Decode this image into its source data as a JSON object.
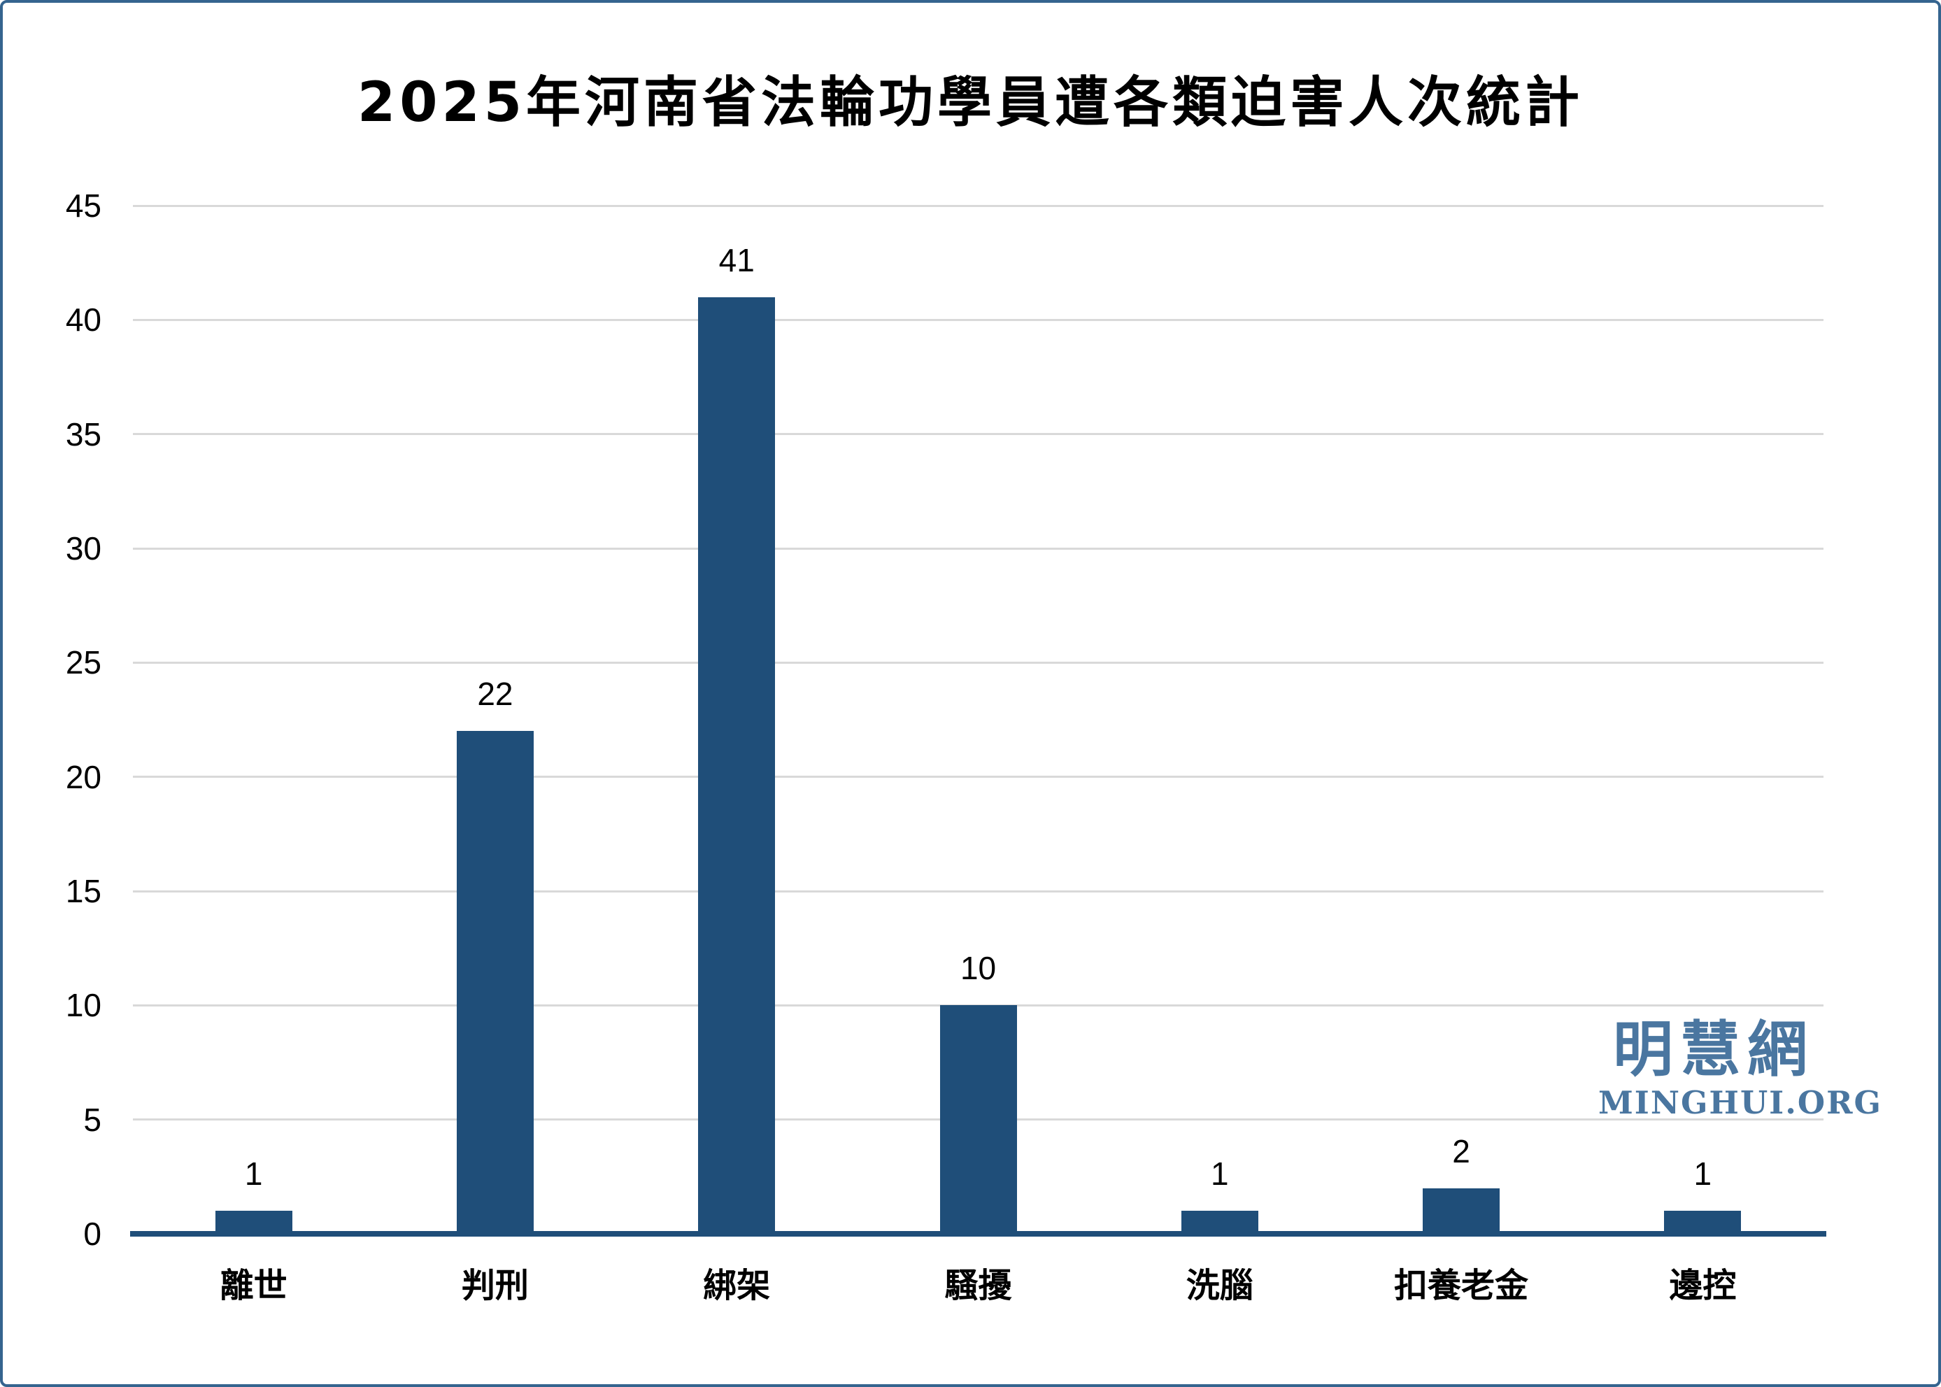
{
  "title": "2025年河南省法輪功學員遭各類迫害人次統計",
  "watermark": {
    "cn": "明慧網",
    "en": "MINGHUI.ORG"
  },
  "colors": {
    "bar": "#1F4E79",
    "axis_line": "#1F4E79",
    "grid_line": "#D9D9D9",
    "frame_border": "#35648F",
    "logo_blue": "#4A76A0",
    "text": "#000000"
  },
  "chart_data": {
    "type": "bar",
    "title": "2025年河南省法輪功學員遭各類迫害人次統計",
    "categories": [
      "離世",
      "判刑",
      "綁架",
      "騷擾",
      "洗腦",
      "扣養老金",
      "邊控"
    ],
    "values": [
      1,
      22,
      41,
      10,
      1,
      2,
      1
    ],
    "value_labels": [
      "1",
      "22",
      "41",
      "10",
      "1",
      "2",
      "1"
    ],
    "xlabel": "",
    "ylabel": "",
    "ylim": [
      0,
      45
    ],
    "y_ticks": [
      0,
      5,
      10,
      15,
      20,
      25,
      30,
      35,
      40,
      45
    ],
    "grid": "horizontal",
    "legend": "none",
    "bar_color": "#1F4E79"
  }
}
